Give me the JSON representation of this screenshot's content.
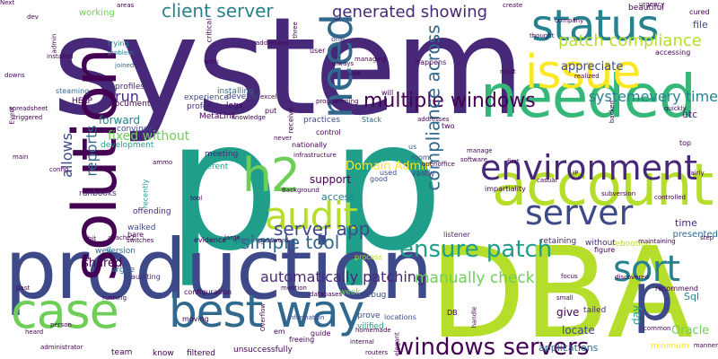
{
  "palette": [
    "#440154",
    "#482878",
    "#3e4989",
    "#31688e",
    "#26828e",
    "#1f9e89",
    "#35b779",
    "#6ece58",
    "#b5de2b",
    "#fde725"
  ],
  "words": [
    {
      "text": "system",
      "size": 150,
      "color": "#482878"
    },
    {
      "text": "p p",
      "size": 200,
      "color": "#1f9e89"
    },
    {
      "text": "DBA",
      "size": 140,
      "color": "#b5de2b"
    },
    {
      "text": "production",
      "size": 92,
      "color": "#3e4989"
    },
    {
      "text": "solution",
      "size": 68,
      "color": "#440154",
      "rot": true
    },
    {
      "text": "account",
      "size": 64,
      "color": "#b5de2b"
    },
    {
      "text": "needed",
      "size": 66,
      "color": "#35b779"
    },
    {
      "text": "issue",
      "size": 52,
      "color": "#fde725"
    },
    {
      "text": "status",
      "size": 48,
      "color": "#26828e"
    },
    {
      "text": "case",
      "size": 54,
      "color": "#6ece58"
    },
    {
      "text": "best way",
      "size": 50,
      "color": "#31688e"
    },
    {
      "text": "p",
      "size": 72,
      "color": "#3e4989"
    },
    {
      "text": "h2",
      "size": 52,
      "color": "#6ece58"
    },
    {
      "text": "environment",
      "size": 38,
      "color": "#482878"
    },
    {
      "text": "need",
      "size": 48,
      "color": "#31688e",
      "rot": true
    },
    {
      "text": "audit",
      "size": 42,
      "color": "#b5de2b"
    },
    {
      "text": "server",
      "size": 38,
      "color": "#3e4989"
    },
    {
      "text": "sort",
      "size": 40,
      "color": "#26828e"
    },
    {
      "text": "ensure patch",
      "size": 26,
      "color": "#1f9e89"
    },
    {
      "text": "windows servers",
      "size": 26,
      "color": "#440154"
    },
    {
      "text": "multiple windows",
      "size": 22,
      "color": "#440154"
    },
    {
      "text": "patch compliance",
      "size": 18,
      "color": "#b5de2b"
    },
    {
      "text": "generated showing",
      "size": 18,
      "color": "#482878"
    },
    {
      "text": "client server",
      "size": 20,
      "color": "#26828e"
    },
    {
      "text": "server app",
      "size": 20,
      "color": "#3e4989"
    },
    {
      "text": "simple tool",
      "size": 20,
      "color": "#31688e"
    },
    {
      "text": "compliance across",
      "size": 20,
      "color": "#31688e",
      "rot": true
    },
    {
      "text": "automatically patching",
      "size": 16,
      "color": "#482878"
    },
    {
      "text": "manually check",
      "size": 17,
      "color": "#6ece58"
    },
    {
      "text": "systemevery time",
      "size": 16,
      "color": "#26828e"
    },
    {
      "text": "fixed without",
      "size": 14,
      "color": "#6ece58"
    },
    {
      "text": "Domain Admin",
      "size": 13,
      "color": "#fde725"
    },
    {
      "text": "appreciate",
      "size": 13,
      "color": "#3e4989"
    },
    {
      "text": "Oracle",
      "size": 13,
      "color": "#6ece58"
    },
    {
      "text": "run",
      "size": 16,
      "color": "#482878"
    },
    {
      "text": "reports",
      "size": 16,
      "color": "#31688e",
      "rot": true
    },
    {
      "text": "allows",
      "size": 16,
      "color": "#3e4989",
      "rot": true
    },
    {
      "text": "forward",
      "size": 12,
      "color": "#26828e"
    },
    {
      "text": "shared",
      "size": 13,
      "color": "#440154"
    },
    {
      "text": "support",
      "size": 12,
      "color": "#440154"
    },
    {
      "text": "access",
      "size": 11,
      "color": "#26828e"
    },
    {
      "text": "day",
      "size": 12,
      "color": "#1f9e89",
      "rot": true
    },
    {
      "text": "give",
      "size": 12,
      "color": "#440154"
    },
    {
      "text": "etc",
      "size": 11,
      "color": "#482878"
    },
    {
      "text": "time",
      "size": 11,
      "color": "#482878"
    },
    {
      "text": "Sql",
      "size": 11,
      "color": "#26828e"
    },
    {
      "text": "file",
      "size": 11,
      "color": "#3e4989"
    },
    {
      "text": "working",
      "size": 10,
      "color": "#6ece58"
    },
    {
      "text": "installing",
      "size": 9,
      "color": "#31688e"
    },
    {
      "text": "logs",
      "size": 9,
      "color": "#440154"
    },
    {
      "text": "develop",
      "size": 9,
      "color": "#3e4989"
    },
    {
      "text": "experience",
      "size": 9,
      "color": "#3e4989"
    },
    {
      "text": "professional",
      "size": 9,
      "color": "#482878"
    },
    {
      "text": "MetaLink",
      "size": 9,
      "color": "#440154"
    },
    {
      "text": "practices",
      "size": 9,
      "color": "#3e4989"
    },
    {
      "text": "document",
      "size": 9,
      "color": "#440154"
    },
    {
      "text": "HELP",
      "size": 9,
      "color": "#440154"
    },
    {
      "text": "profiles",
      "size": 9,
      "color": "#482878"
    },
    {
      "text": "steaming",
      "size": 8,
      "color": "#31688e"
    },
    {
      "text": "trying",
      "size": 8,
      "color": "#26828e"
    },
    {
      "text": "problem",
      "size": 7,
      "color": "#26828e"
    },
    {
      "text": "convince",
      "size": 9,
      "color": "#3e4989"
    },
    {
      "text": "development",
      "size": 9,
      "color": "#1f9e89"
    },
    {
      "text": "meeting",
      "size": 9,
      "color": "#482878"
    },
    {
      "text": "different",
      "size": 9,
      "color": "#1f9e89"
    },
    {
      "text": "runbooks",
      "size": 9,
      "color": "#482878"
    },
    {
      "text": "offending",
      "size": 9,
      "color": "#482878"
    },
    {
      "text": "walked",
      "size": 9,
      "color": "#3e4989"
    },
    {
      "text": "well",
      "size": 9,
      "color": "#31688e"
    },
    {
      "text": "version",
      "size": 9,
      "color": "#31688e"
    },
    {
      "text": "argue",
      "size": 9,
      "color": "#31688e"
    },
    {
      "text": "auditing",
      "size": 8,
      "color": "#482878"
    },
    {
      "text": "evidence",
      "size": 8,
      "color": "#440154"
    },
    {
      "text": "privileges",
      "size": 9,
      "color": "#31688e"
    },
    {
      "text": "configuration",
      "size": 8,
      "color": "#440154"
    },
    {
      "text": "week",
      "size": 9,
      "color": "#6ece58"
    },
    {
      "text": "debug",
      "size": 9,
      "color": "#3e4989"
    },
    {
      "text": "process",
      "size": 8,
      "color": "#b5de2b"
    },
    {
      "text": "listener",
      "size": 8,
      "color": "#482878"
    },
    {
      "text": "locate",
      "size": 12,
      "color": "#3e4989"
    },
    {
      "text": "tailed",
      "size": 9,
      "color": "#482878"
    },
    {
      "text": "applications",
      "size": 11,
      "color": "#31688e"
    },
    {
      "text": "minimum",
      "size": 9,
      "color": "#fde725"
    },
    {
      "text": "recommend",
      "size": 8,
      "color": "#440154"
    },
    {
      "text": "presented",
      "size": 10,
      "color": "#31688e"
    },
    {
      "text": "rebooting",
      "size": 9,
      "color": "#b5de2b"
    },
    {
      "text": "retaining",
      "size": 9,
      "color": "#482878"
    },
    {
      "text": "without",
      "size": 9,
      "color": "#482878"
    },
    {
      "text": "figure",
      "size": 8,
      "color": "#440154"
    },
    {
      "text": "prove",
      "size": 9,
      "color": "#3e4989"
    },
    {
      "text": "vilified",
      "size": 9,
      "color": "#1f9e89"
    },
    {
      "text": "unsuccessfully",
      "size": 9,
      "color": "#440154"
    },
    {
      "text": "information",
      "size": 7,
      "color": "#3e4989"
    },
    {
      "text": "filtered",
      "size": 9,
      "color": "#440154"
    },
    {
      "text": "know",
      "size": 9,
      "color": "#440154"
    },
    {
      "text": "team",
      "size": 9,
      "color": "#440154"
    },
    {
      "text": "moving",
      "size": 8,
      "color": "#440154"
    },
    {
      "text": "freeing",
      "size": 8,
      "color": "#440154"
    },
    {
      "text": "em",
      "size": 8,
      "color": "#440154"
    },
    {
      "text": "guide",
      "size": 8,
      "color": "#440154"
    },
    {
      "text": "mention",
      "size": 7,
      "color": "#440154"
    },
    {
      "text": "locations",
      "size": 8,
      "color": "#3e4989"
    },
    {
      "text": "DB",
      "size": 8,
      "color": "#440154"
    },
    {
      "text": "room",
      "size": 8,
      "color": "#3e4989"
    },
    {
      "text": "openoffice",
      "size": 7,
      "color": "#440154"
    },
    {
      "text": "vastly",
      "size": 9,
      "color": "#3e4989"
    },
    {
      "text": "used",
      "size": 8,
      "color": "#3e4989"
    },
    {
      "text": "good",
      "size": 8,
      "color": "#3e4989"
    },
    {
      "text": "us",
      "size": 8,
      "color": "#31688e"
    },
    {
      "text": "nationally",
      "size": 8,
      "color": "#440154"
    },
    {
      "text": "infrastructure",
      "size": 7,
      "color": "#440154"
    },
    {
      "text": "control",
      "size": 8,
      "color": "#440154"
    },
    {
      "text": "Stack",
      "size": 8,
      "color": "#31688e"
    },
    {
      "text": "addresses",
      "size": 7,
      "color": "#440154"
    },
    {
      "text": "two",
      "size": 8,
      "color": "#440154"
    },
    {
      "text": "happens",
      "size": 8,
      "color": "#440154"
    },
    {
      "text": "always",
      "size": 7,
      "color": "#440154"
    },
    {
      "text": "use",
      "size": 8,
      "color": "#440154"
    },
    {
      "text": "will",
      "size": 8,
      "color": "#440154"
    },
    {
      "text": "programming",
      "size": 7,
      "color": "#440154"
    },
    {
      "text": "one",
      "size": 8,
      "color": "#3e4989"
    },
    {
      "text": "user",
      "size": 8,
      "color": "#440154"
    },
    {
      "text": "excel",
      "size": 7,
      "color": "#440154"
    },
    {
      "text": "put",
      "size": 8,
      "color": "#440154"
    },
    {
      "text": "addressed",
      "size": 7,
      "color": "#440154"
    },
    {
      "text": "receive",
      "size": 8,
      "color": "#440154",
      "rot": true
    },
    {
      "text": "critical",
      "size": 8,
      "color": "#440154",
      "rot": true
    },
    {
      "text": "joined",
      "size": 7,
      "color": "#31688e"
    },
    {
      "text": "areas",
      "size": 7,
      "color": "#440154"
    },
    {
      "text": "create",
      "size": 7,
      "color": "#440154"
    },
    {
      "text": "beautiful",
      "size": 9,
      "color": "#440154"
    },
    {
      "text": "urgency",
      "size": 7,
      "color": "#440154"
    },
    {
      "text": "cured",
      "size": 8,
      "color": "#440154"
    },
    {
      "text": "thought",
      "size": 7,
      "color": "#440154"
    },
    {
      "text": "accessing",
      "size": 8,
      "color": "#440154"
    },
    {
      "text": "must",
      "size": 7,
      "color": "#440154"
    },
    {
      "text": "quickly",
      "size": 7,
      "color": "#440154"
    },
    {
      "text": "top",
      "size": 8,
      "color": "#440154"
    },
    {
      "text": "fairly",
      "size": 7,
      "color": "#440154"
    },
    {
      "text": "step",
      "size": 7,
      "color": "#440154"
    },
    {
      "text": "common",
      "size": 7,
      "color": "#440154"
    },
    {
      "text": "manner",
      "size": 7,
      "color": "#440154"
    },
    {
      "text": "small",
      "size": 7,
      "color": "#440154"
    },
    {
      "text": "focus",
      "size": 7,
      "color": "#440154"
    },
    {
      "text": "discovered",
      "size": 7,
      "color": "#440154"
    },
    {
      "text": "controlled",
      "size": 7,
      "color": "#440154"
    },
    {
      "text": "subversion",
      "size": 7,
      "color": "#440154"
    },
    {
      "text": "impartiality",
      "size": 8,
      "color": "#440154"
    },
    {
      "text": "first",
      "size": 7,
      "color": "#440154"
    },
    {
      "text": "manage",
      "size": 7,
      "color": "#440154"
    },
    {
      "text": "handle",
      "size": 7,
      "color": "#440154",
      "rot": true
    },
    {
      "text": "elegant",
      "size": 7,
      "color": "#440154",
      "rot": true
    },
    {
      "text": "routers",
      "size": 7,
      "color": "#440154"
    },
    {
      "text": "homemade",
      "size": 7,
      "color": "#440154"
    },
    {
      "text": "heard",
      "size": 7,
      "color": "#440154"
    },
    {
      "text": "administrator",
      "size": 7,
      "color": "#440154"
    },
    {
      "text": "person",
      "size": 7,
      "color": "#440154"
    },
    {
      "text": "past",
      "size": 7,
      "color": "#440154"
    },
    {
      "text": "installed",
      "size": 7,
      "color": "#440154"
    },
    {
      "text": "spreadsheet",
      "size": 7,
      "color": "#440154"
    },
    {
      "text": "downs",
      "size": 7,
      "color": "#440154"
    },
    {
      "text": "config",
      "size": 7,
      "color": "#440154"
    },
    {
      "text": "main",
      "size": 7,
      "color": "#440154"
    },
    {
      "text": "triggered",
      "size": 7,
      "color": "#440154"
    },
    {
      "text": "bare",
      "size": 8,
      "color": "#440154"
    },
    {
      "text": "switches",
      "size": 7,
      "color": "#440154"
    },
    {
      "text": "apache2",
      "size": 7,
      "color": "#440154"
    },
    {
      "text": "ammo",
      "size": 7,
      "color": "#440154"
    },
    {
      "text": "tool",
      "size": 7,
      "color": "#440154"
    },
    {
      "text": "recently",
      "size": 8,
      "color": "#1f9e89",
      "rot": true
    },
    {
      "text": "large",
      "size": 7,
      "color": "#440154"
    },
    {
      "text": "running",
      "size": 7,
      "color": "#440154"
    },
    {
      "text": "dev",
      "size": 7,
      "color": "#440154"
    },
    {
      "text": "admin",
      "size": 7,
      "color": "#440154",
      "rot": true
    },
    {
      "text": "company",
      "size": 7,
      "color": "#440154"
    },
    {
      "text": "realized",
      "size": 7,
      "color": "#440154"
    },
    {
      "text": "managing",
      "size": 7,
      "color": "#440154"
    },
    {
      "text": "work",
      "size": 7,
      "color": "#440154"
    },
    {
      "text": "three",
      "size": 7,
      "color": "#440154",
      "rot": true
    },
    {
      "text": "knowledge",
      "size": 7,
      "color": "#440154"
    },
    {
      "text": "never",
      "size": 7,
      "color": "#440154"
    },
    {
      "text": "Background",
      "size": 7,
      "color": "#440154"
    },
    {
      "text": "databases",
      "size": 7,
      "color": "#440154"
    },
    {
      "text": "password",
      "size": 7,
      "color": "#440154"
    },
    {
      "text": "Overflow",
      "size": 7,
      "color": "#440154",
      "rot": true
    },
    {
      "text": "internal",
      "size": 7,
      "color": "#440154"
    },
    {
      "text": "bit",
      "size": 7,
      "color": "#440154"
    },
    {
      "text": "Event",
      "size": 7,
      "color": "#440154",
      "rot": true
    },
    {
      "text": "IP",
      "size": 7,
      "color": "#440154"
    },
    {
      "text": "casual",
      "size": 7,
      "color": "#440154"
    },
    {
      "text": "maintaining",
      "size": 7,
      "color": "#440154"
    },
    {
      "text": "software",
      "size": 7,
      "color": "#440154"
    },
    {
      "text": "backed",
      "size": 7,
      "color": "#440154",
      "rot": true
    },
    {
      "text": "Next",
      "size": 7,
      "color": "#440154"
    }
  ]
}
